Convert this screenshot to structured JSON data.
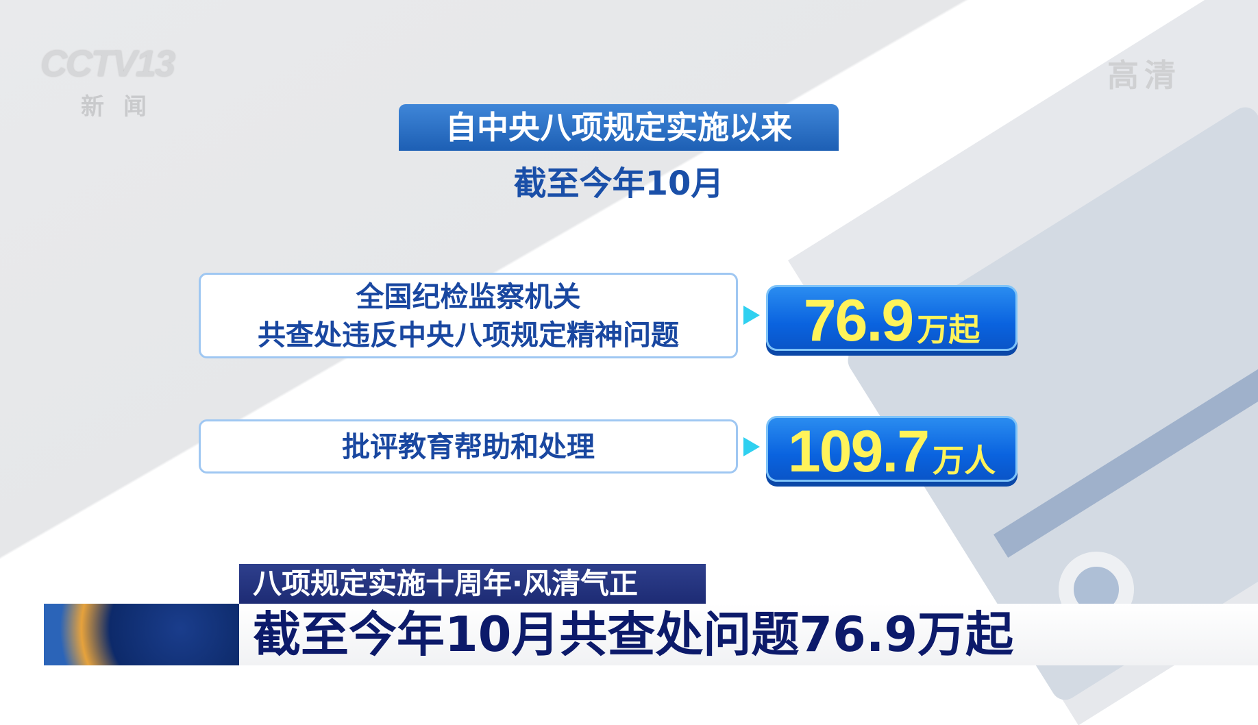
{
  "logo": {
    "channel": "CCTV13",
    "subtitle": "新闻"
  },
  "hd_badge": "高清",
  "header": {
    "title": "自中央八项规定实施以来",
    "subtitle": "截至今年10月"
  },
  "stats": [
    {
      "label_lines": [
        "全国纪检监察机关",
        "共查处违反中央八项规定精神问题"
      ],
      "value": "76.9",
      "unit": "万起"
    },
    {
      "label_lines": [
        "批评教育帮助和处理"
      ],
      "value": "109.7",
      "unit": "万人"
    }
  ],
  "lower_third": {
    "tag": "八项规定实施十周年·风清气正",
    "headline": "截至今年10月共查处问题76.9万起"
  },
  "colors": {
    "title_blue": "#1d5fb4",
    "value_yellow": "#fff35a",
    "value_box": "#0a63df",
    "banner_navy": "#1d2b74"
  }
}
